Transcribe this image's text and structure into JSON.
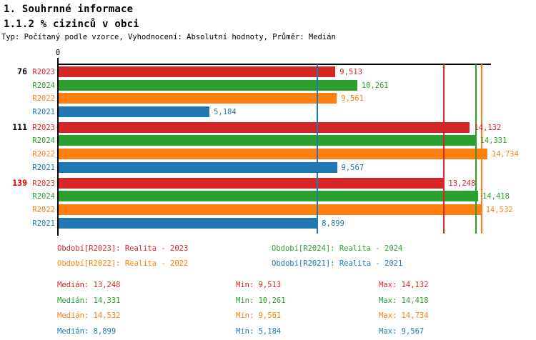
{
  "header": {
    "title": "1. Souhrnné informace",
    "subtitle": "1.1.2 % cizinců v obci",
    "meta": "Typ: Počítaný podle vzorce, Vyhodnocení: Absolutní hodnoty, Průměr: Medián"
  },
  "colors": {
    "R2023": "#d62728",
    "R2024": "#2ca02c",
    "R2022": "#ff7f0e",
    "R2021": "#1f77b4",
    "axis": "#000000",
    "highlight_group_label": "#dd0000",
    "default_group_label": "#000000"
  },
  "chart_data": {
    "type": "bar",
    "orientation": "horizontal",
    "axis_tick_label": "0",
    "xlim": [
      0,
      14860
    ],
    "grid": false,
    "series_order": [
      "R2023",
      "R2024",
      "R2022",
      "R2021"
    ],
    "groups": [
      {
        "label": "76",
        "label_color": "#000000",
        "bars": [
          {
            "series": "R2023",
            "value": 9513,
            "label": "9,513"
          },
          {
            "series": "R2024",
            "value": 10261,
            "label": "10,261"
          },
          {
            "series": "R2022",
            "value": 9561,
            "label": "9,561"
          },
          {
            "series": "R2021",
            "value": 5184,
            "label": "5,184"
          }
        ]
      },
      {
        "label": "111",
        "label_color": "#000000",
        "bars": [
          {
            "series": "R2023",
            "value": 14132,
            "label": "14,132"
          },
          {
            "series": "R2024",
            "value": 14331,
            "label": "14,331"
          },
          {
            "series": "R2022",
            "value": 14734,
            "label": "14,734"
          },
          {
            "series": "R2021",
            "value": 9567,
            "label": "9,567"
          }
        ]
      },
      {
        "label": "139",
        "label_color": "#dd0000",
        "bars": [
          {
            "series": "R2023",
            "value": 13248,
            "label": "13,248"
          },
          {
            "series": "R2024",
            "value": 14418,
            "label": "14,418"
          },
          {
            "series": "R2022",
            "value": 14532,
            "label": "14,532"
          },
          {
            "series": "R2021",
            "value": 8899,
            "label": "8,899"
          }
        ]
      }
    ],
    "median_lines": [
      {
        "series": "R2023",
        "value": 13248
      },
      {
        "series": "R2024",
        "value": 14331
      },
      {
        "series": "R2022",
        "value": 14532
      },
      {
        "series": "R2021",
        "value": 8899
      }
    ]
  },
  "legend": [
    {
      "series": "R2023",
      "label": "Období[R2023]: Realita - 2023"
    },
    {
      "series": "R2024",
      "label": "Období[R2024]: Realita - 2024"
    },
    {
      "series": "R2022",
      "label": "Období[R2022]: Realita - 2022"
    },
    {
      "series": "R2021",
      "label": "Období[R2021]: Realita - 2021"
    }
  ],
  "stats": [
    {
      "series": "R2023",
      "median": "Medián: 13,248",
      "min": "Min: 9,513",
      "max": "Max: 14,132"
    },
    {
      "series": "R2024",
      "median": "Medián: 14,331",
      "min": "Min: 10,261",
      "max": "Max: 14,418"
    },
    {
      "series": "R2022",
      "median": "Medián: 14,532",
      "min": "Min: 9,561",
      "max": "Max: 14,734"
    },
    {
      "series": "R2021",
      "median": "Medián: 8,899",
      "min": "Min: 5,184",
      "max": "Max: 9,567"
    }
  ]
}
